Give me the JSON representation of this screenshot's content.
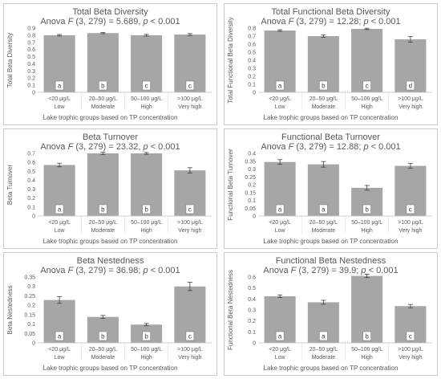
{
  "chart_data": [
    {
      "type": "bar",
      "title": "Total Beta Diversity",
      "subtitle": {
        "prefix": "Anova ",
        "stat": "F",
        "mid": " (3, 279) = 5.689, ",
        "p": "p",
        "suffix": " < 0.001"
      },
      "ylabel": "Total Beta Diversity",
      "xlabel": "Lake trophic groups based on TP concentration",
      "categories": [
        [
          "<20 μg/L",
          "Low"
        ],
        [
          "20–50 μg/L",
          "Moderate"
        ],
        [
          "50–100 μg/L",
          "High"
        ],
        [
          ">100 μg/L",
          "Very high"
        ]
      ],
      "values": [
        0.8,
        0.83,
        0.8,
        0.81
      ],
      "errors": [
        0.01,
        0.008,
        0.012,
        0.013
      ],
      "letters": [
        "a",
        "b",
        "c",
        "c"
      ],
      "yticks": [
        "0",
        "0.1",
        "0.2",
        "0.3",
        "0.4",
        "0.5",
        "0.6",
        "0.7",
        "0.8",
        "0.9"
      ],
      "ylim": [
        0,
        0.9
      ],
      "bar_color": "#a6a6a6"
    },
    {
      "type": "bar",
      "title": "Total Functional Beta Diversity",
      "subtitle": {
        "prefix": "Anova ",
        "stat": "F",
        "mid": " (3, 279) = 12.28; ",
        "p": "p",
        "suffix": " < 0.001"
      },
      "ylabel": "Total Functional Beta Diversity",
      "xlabel": "Lake trophic groups based on TP concentration",
      "categories": [
        [
          "<20 μg/L",
          "Low"
        ],
        [
          "20–50 μg/L",
          "Moderate"
        ],
        [
          "50–100 μg/L",
          "High"
        ],
        [
          ">100 μg/L",
          "Very high"
        ]
      ],
      "values": [
        0.77,
        0.7,
        0.79,
        0.66
      ],
      "errors": [
        0.01,
        0.015,
        0.008,
        0.035
      ],
      "letters": [
        "a",
        "b",
        "c",
        "d"
      ],
      "yticks": [
        "0",
        "0.1",
        "0.2",
        "0.3",
        "0.4",
        "0.5",
        "0.6",
        "0.7",
        "0.8"
      ],
      "ylim": [
        0,
        0.8
      ],
      "bar_color": "#a6a6a6"
    },
    {
      "type": "bar",
      "title": "Beta Turnover",
      "subtitle": {
        "prefix": "Anova ",
        "stat": "F",
        "mid": " (3, 279) = 23.32, ",
        "p": "p",
        "suffix": " < 0.001"
      },
      "ylabel": "Beta Turnover",
      "xlabel": "Lake trophic groups based on TP concentration",
      "categories": [
        [
          "<20 μg/L",
          "Low"
        ],
        [
          "20–50 μg/L",
          "Moderate"
        ],
        [
          "50–100 μg/L",
          "High"
        ],
        [
          ">100 μg/L",
          "Very high"
        ]
      ],
      "values": [
        0.57,
        0.7,
        0.7,
        0.51
      ],
      "errors": [
        0.02,
        0.012,
        0.01,
        0.03
      ],
      "letters": [
        "a",
        "b",
        "b",
        "c"
      ],
      "yticks": [
        "0",
        "0.1",
        "0.2",
        "0.3",
        "0.4",
        "0.5",
        "0.6",
        "0.7"
      ],
      "ylim": [
        0,
        0.7
      ],
      "bar_color": "#a6a6a6"
    },
    {
      "type": "bar",
      "title": "Functional Beta Turnover",
      "subtitle": {
        "prefix": "Anova ",
        "stat": "F",
        "mid": " (3, 279) = 12.88; ",
        "p": "p",
        "suffix": " < 0.001"
      },
      "ylabel": "Functional Beta Turnover",
      "xlabel": "Lake trophic groups based on TP concentration",
      "categories": [
        [
          "<20 μg/L",
          "Low"
        ],
        [
          "20–50 μg/L",
          "Moderate"
        ],
        [
          "50–100 μg/L",
          "High"
        ],
        [
          ">100 μg/L",
          "Very high"
        ]
      ],
      "values": [
        0.345,
        0.33,
        0.18,
        0.32
      ],
      "errors": [
        0.015,
        0.018,
        0.015,
        0.015
      ],
      "letters": [
        "a",
        "a",
        "b",
        "c"
      ],
      "yticks": [
        "0",
        "0.05",
        "0.1",
        "0.15",
        "0.2",
        "0.25",
        "0.3",
        "0.35",
        "0.4"
      ],
      "ylim": [
        0,
        0.4
      ],
      "bar_color": "#a6a6a6"
    },
    {
      "type": "bar",
      "title": "Beta Nestedness",
      "subtitle": {
        "prefix": "Anova ",
        "stat": "F",
        "mid": " (3, 279) = 36.98; ",
        "p": "p",
        "suffix": " < 0.001"
      },
      "ylabel": "Beta Nestedness",
      "xlabel": "Lake trophic groups based on TP concentration",
      "categories": [
        [
          "<20 μg/L",
          "Low"
        ],
        [
          "20–50 μg/L",
          "Moderate"
        ],
        [
          "50–100 μg/L",
          "High"
        ],
        [
          ">100 μg/L",
          "Very high"
        ]
      ],
      "values": [
        0.228,
        0.138,
        0.097,
        0.3
      ],
      "errors": [
        0.018,
        0.008,
        0.006,
        0.022
      ],
      "letters": [
        "a",
        "b",
        "b",
        "c"
      ],
      "yticks": [
        "0",
        "0.05",
        "0.1",
        "0.15",
        "0.2",
        "0.25",
        "0.3",
        "0.35"
      ],
      "ylim": [
        0,
        0.35
      ],
      "bar_color": "#a6a6a6"
    },
    {
      "type": "bar",
      "title": "Functional Beta Nestedness",
      "subtitle": {
        "prefix": "Anova ",
        "stat": "F",
        "mid": " (3, 279) = 39.9; ",
        "p": "p",
        "suffix": " < 0.001"
      },
      "ylabel": "Functional Beta Nestedness",
      "xlabel": "Lake trophic groups based on TP concentration",
      "categories": [
        [
          "<20 μg/L",
          "Low"
        ],
        [
          "20–50 μg/L",
          "Moderate"
        ],
        [
          "50–100 μg/L",
          "High"
        ],
        [
          ">100 μg/L",
          "Very high"
        ]
      ],
      "values": [
        0.425,
        0.37,
        0.61,
        0.335
      ],
      "errors": [
        0.012,
        0.018,
        0.015,
        0.015
      ],
      "letters": [
        "a",
        "a",
        "b",
        "c"
      ],
      "yticks": [
        "0",
        "0.1",
        "0.2",
        "0.3",
        "0.4",
        "0.5",
        "0.6"
      ],
      "ylim": [
        0,
        0.6
      ],
      "bar_color": "#a6a6a6"
    }
  ]
}
